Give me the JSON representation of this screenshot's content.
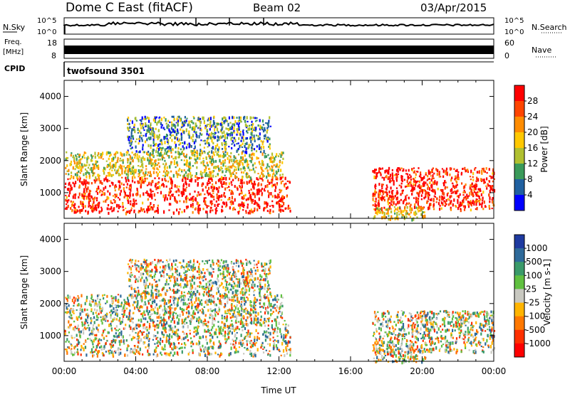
{
  "header": {
    "title": "Dome C East (fitACF)",
    "beam": "Beam 02",
    "date": "03/Apr/2015"
  },
  "sky_panel": {
    "left_label": "N.Sky",
    "left_ticks": [
      "10^5",
      "10^0"
    ],
    "right_label": "N.Search",
    "right_ticks": [
      "10^5",
      "10^0"
    ]
  },
  "freq_panel": {
    "left_label_1": "Freq.",
    "left_label_2": "[MHz]",
    "left_ticks": [
      "18",
      "8"
    ],
    "right_label": "Nave",
    "right_ticks": [
      "60",
      "0"
    ]
  },
  "cpid_panel": {
    "label": "CPID",
    "program": "twofsound 3501"
  },
  "chart_data": [
    {
      "type": "heatmap",
      "panel": "power",
      "ylabel": "Slant Range [km]",
      "ylim": [
        200,
        4500
      ],
      "yticks": [
        "1000",
        "2000",
        "3000",
        "4000"
      ],
      "xlim": [
        0,
        24
      ],
      "colorbar": {
        "label": "Power [dB]",
        "ticks": [
          "28",
          "24",
          "20",
          "16",
          "12",
          "8",
          "4"
        ],
        "colors": [
          "#ff0000",
          "#ff4500",
          "#ff8c00",
          "#ffc800",
          "#b0c030",
          "#3a9a5a",
          "#2060a0",
          "#0000ff"
        ]
      },
      "regions": [
        {
          "t": [
            0,
            12.6
          ],
          "r": [
            400,
            1500
          ],
          "level": "high"
        },
        {
          "t": [
            0,
            12.2
          ],
          "r": [
            1500,
            2300
          ],
          "level": "mid"
        },
        {
          "t": [
            3.5,
            11.5
          ],
          "r": [
            2300,
            3400
          ],
          "level": "low"
        },
        {
          "t": [
            17.2,
            24
          ],
          "r": [
            500,
            1800
          ],
          "level": "high"
        },
        {
          "t": [
            17.2,
            20.2
          ],
          "r": [
            200,
            600
          ],
          "level": "mid"
        }
      ]
    },
    {
      "type": "heatmap",
      "panel": "velocity",
      "ylabel": "Slant Range [km]",
      "ylim": [
        200,
        4500
      ],
      "yticks": [
        "1000",
        "2000",
        "3000",
        "4000"
      ],
      "xlim": [
        0,
        24
      ],
      "xticks": [
        "00:00",
        "04:00",
        "08:00",
        "12:00",
        "16:00",
        "20:00",
        "00:00"
      ],
      "xlabel": "Time UT",
      "colorbar": {
        "label": "Velocity [m s-1]",
        "ticks": [
          "1000",
          "500",
          "100",
          "25",
          "-25",
          "-100",
          "-500",
          "-1000"
        ],
        "colors": [
          "#1e3aa0",
          "#2e6a9a",
          "#3a9a6a",
          "#60c040",
          "#c8c8c0",
          "#ffb400",
          "#ff7800",
          "#ff3000",
          "#ff0000"
        ]
      },
      "regions": [
        {
          "t": [
            0,
            12.6
          ],
          "r": [
            400,
            1500
          ],
          "level": "mixed"
        },
        {
          "t": [
            0,
            12.2
          ],
          "r": [
            1500,
            2300
          ],
          "level": "mixed"
        },
        {
          "t": [
            3.5,
            11.5
          ],
          "r": [
            2300,
            3400
          ],
          "level": "mixed"
        },
        {
          "t": [
            17.2,
            24
          ],
          "r": [
            500,
            1800
          ],
          "level": "mixed"
        },
        {
          "t": [
            17.2,
            20.2
          ],
          "r": [
            200,
            600
          ],
          "level": "mixed"
        }
      ]
    }
  ]
}
